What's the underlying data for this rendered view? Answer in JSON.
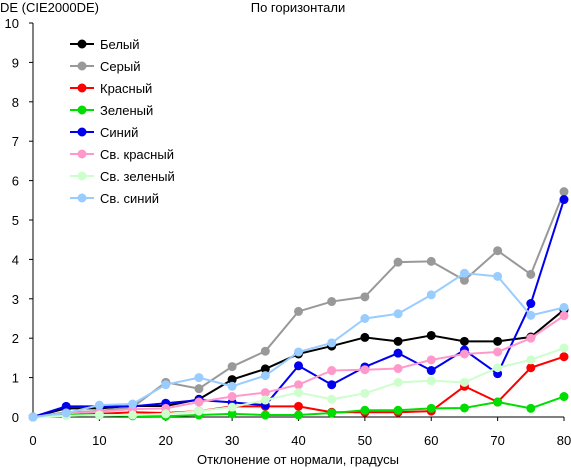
{
  "chart_data": {
    "type": "line",
    "title": "По горизонтали",
    "ylabel": "DE (CIE2000DE)",
    "xlabel": "Отклонение от нормали, градусы",
    "x": [
      0,
      5,
      10,
      15,
      20,
      25,
      30,
      35,
      40,
      45,
      50,
      55,
      60,
      65,
      70,
      75,
      80
    ],
    "xlim": [
      0,
      80
    ],
    "ylim": [
      0,
      10
    ],
    "x_ticks": [
      "0",
      "10",
      "20",
      "30",
      "40",
      "50",
      "60",
      "70",
      "80"
    ],
    "y_ticks": [
      "0",
      "1",
      "2",
      "3",
      "4",
      "5",
      "6",
      "7",
      "8",
      "9",
      "10"
    ],
    "grid": false,
    "legend_position": "top-left",
    "series": [
      {
        "name": "Белый",
        "color": "#000000",
        "values": [
          0,
          0.22,
          0.22,
          0.28,
          0.28,
          0.45,
          0.95,
          1.22,
          1.6,
          1.8,
          2.02,
          1.92,
          2.07,
          1.92,
          1.92,
          2.03,
          2.72
        ]
      },
      {
        "name": "Серый",
        "color": "#999999",
        "values": [
          0,
          0.12,
          0.15,
          0.25,
          0.88,
          0.72,
          1.28,
          1.67,
          2.68,
          2.93,
          3.05,
          3.93,
          3.95,
          3.47,
          4.22,
          3.62,
          5.72
        ]
      },
      {
        "name": "Красный",
        "color": "#ff0000",
        "values": [
          0,
          0.05,
          0.08,
          0.12,
          0.1,
          0.15,
          0.27,
          0.27,
          0.27,
          0.12,
          0.12,
          0.12,
          0.15,
          0.78,
          0.38,
          1.25,
          1.53
        ]
      },
      {
        "name": "Зеленый",
        "color": "#00dd00",
        "values": [
          0,
          0.05,
          0.05,
          0.03,
          0.02,
          0.05,
          0.08,
          0.05,
          0.05,
          0.1,
          0.17,
          0.17,
          0.22,
          0.23,
          0.38,
          0.22,
          0.52
        ]
      },
      {
        "name": "Синий",
        "color": "#0000ee",
        "values": [
          0,
          0.27,
          0.27,
          0.27,
          0.35,
          0.43,
          0.37,
          0.3,
          1.3,
          0.82,
          1.27,
          1.62,
          1.18,
          1.7,
          1.1,
          2.88,
          5.52
        ]
      },
      {
        "name": "Св. красный",
        "color": "#ff99cc",
        "values": [
          0,
          0.1,
          0.13,
          0.2,
          0.22,
          0.38,
          0.52,
          0.62,
          0.82,
          1.18,
          1.2,
          1.23,
          1.45,
          1.6,
          1.65,
          2.0,
          2.57
        ]
      },
      {
        "name": "Св. зеленый",
        "color": "#ccffcc",
        "values": [
          0,
          0.03,
          0.05,
          0.05,
          0.08,
          0.15,
          0.25,
          0.43,
          0.62,
          0.45,
          0.6,
          0.88,
          0.92,
          0.88,
          1.25,
          1.45,
          1.75
        ]
      },
      {
        "name": "Св. синий",
        "color": "#99ccff",
        "values": [
          0,
          0.1,
          0.3,
          0.33,
          0.82,
          1.0,
          0.78,
          1.05,
          1.65,
          1.88,
          2.5,
          2.62,
          3.1,
          3.65,
          3.57,
          2.58,
          2.78
        ]
      }
    ]
  }
}
